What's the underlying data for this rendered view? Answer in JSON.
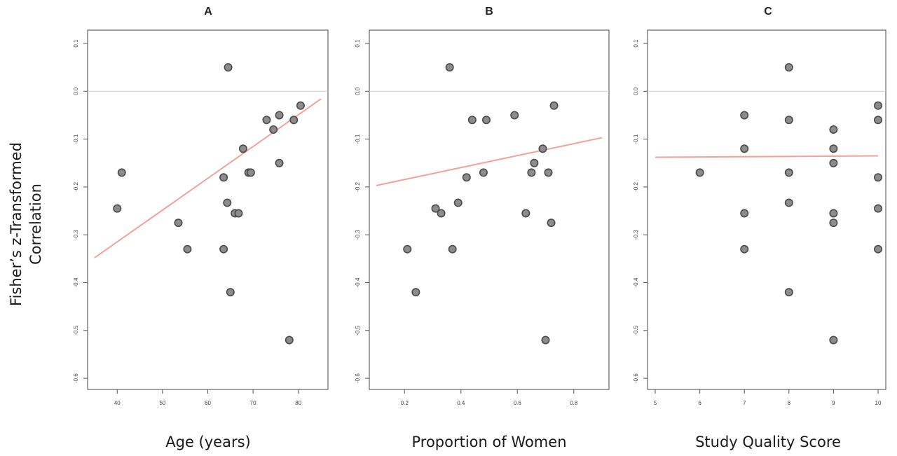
{
  "ylabel_lines": [
    "Fisher’s z-Transformed",
    "Correlation"
  ],
  "colors": {
    "points": "#8c8c8c",
    "point_edge": "#4a4a4a",
    "fit_line": "#f4a199",
    "zero_line": "#cfcfcf"
  },
  "chart_data": [
    {
      "type": "scatter",
      "title": "A",
      "xlabel": "Age (years)",
      "xlim": [
        35,
        85
      ],
      "ylim": [
        -0.6,
        0.1
      ],
      "xticks": [
        40,
        50,
        60,
        70,
        80
      ],
      "xtick_labels": [
        "40",
        "50",
        "60",
        "70",
        "80"
      ],
      "yticks": [
        0.1,
        0.0,
        -0.1,
        -0.2,
        -0.3,
        -0.4,
        -0.5,
        -0.6
      ],
      "ytick_labels": [
        "0.1",
        "0.0",
        "-0.1",
        "-0.2",
        "-0.3",
        "-0.4",
        "-0.5",
        "-0.6"
      ],
      "reference_line_y": 0,
      "points": [
        {
          "x": 40,
          "y": -0.245
        },
        {
          "x": 41,
          "y": -0.17
        },
        {
          "x": 53.5,
          "y": -0.275
        },
        {
          "x": 55.5,
          "y": -0.33
        },
        {
          "x": 63.5,
          "y": -0.18
        },
        {
          "x": 63.5,
          "y": -0.33
        },
        {
          "x": 64.3,
          "y": -0.233
        },
        {
          "x": 64.5,
          "y": 0.05
        },
        {
          "x": 65,
          "y": -0.42
        },
        {
          "x": 66,
          "y": -0.255
        },
        {
          "x": 66.8,
          "y": -0.255
        },
        {
          "x": 67.8,
          "y": -0.12
        },
        {
          "x": 69,
          "y": -0.17
        },
        {
          "x": 69.5,
          "y": -0.17
        },
        {
          "x": 73,
          "y": -0.06
        },
        {
          "x": 74.5,
          "y": -0.08
        },
        {
          "x": 75.8,
          "y": -0.05
        },
        {
          "x": 75.8,
          "y": -0.15
        },
        {
          "x": 78,
          "y": -0.52
        },
        {
          "x": 79,
          "y": -0.06
        },
        {
          "x": 80.5,
          "y": -0.03
        }
      ],
      "fit_line": {
        "x": [
          35,
          85
        ],
        "y": [
          -0.348,
          -0.016
        ]
      }
    },
    {
      "type": "scatter",
      "title": "B",
      "xlabel": "Proportion of Women",
      "xlim": [
        0.1,
        0.9
      ],
      "ylim": [
        -0.6,
        0.1
      ],
      "xticks": [
        0.2,
        0.4,
        0.6,
        0.8
      ],
      "xtick_labels": [
        "0.2",
        "0.4",
        "0.6",
        "0.8"
      ],
      "yticks": [
        0.1,
        0.0,
        -0.1,
        -0.2,
        -0.3,
        -0.4,
        -0.5,
        -0.6
      ],
      "ytick_labels": [
        "0.1",
        "0.0",
        "-0.1",
        "-0.2",
        "-0.3",
        "-0.4",
        "-0.5",
        "-0.6"
      ],
      "reference_line_y": 0,
      "points": [
        {
          "x": 0.21,
          "y": -0.33
        },
        {
          "x": 0.24,
          "y": -0.42
        },
        {
          "x": 0.31,
          "y": -0.245
        },
        {
          "x": 0.33,
          "y": -0.255
        },
        {
          "x": 0.36,
          "y": 0.05
        },
        {
          "x": 0.37,
          "y": -0.33
        },
        {
          "x": 0.39,
          "y": -0.233
        },
        {
          "x": 0.42,
          "y": -0.18
        },
        {
          "x": 0.44,
          "y": -0.06
        },
        {
          "x": 0.48,
          "y": -0.17
        },
        {
          "x": 0.49,
          "y": -0.06
        },
        {
          "x": 0.59,
          "y": -0.05
        },
        {
          "x": 0.63,
          "y": -0.255
        },
        {
          "x": 0.65,
          "y": -0.17
        },
        {
          "x": 0.66,
          "y": -0.15
        },
        {
          "x": 0.69,
          "y": -0.12
        },
        {
          "x": 0.7,
          "y": -0.52
        },
        {
          "x": 0.71,
          "y": -0.17
        },
        {
          "x": 0.72,
          "y": -0.275
        },
        {
          "x": 0.73,
          "y": -0.03
        }
      ],
      "fit_line": {
        "x": [
          0.1,
          0.9
        ],
        "y": [
          -0.197,
          -0.097
        ]
      }
    },
    {
      "type": "scatter",
      "title": "C",
      "xlabel": "Study Quality Score",
      "xlim": [
        5,
        10
      ],
      "ylim": [
        -0.6,
        0.1
      ],
      "xticks": [
        5,
        6,
        7,
        8,
        9,
        10
      ],
      "xtick_labels": [
        "5",
        "6",
        "7",
        "8",
        "9",
        "10"
      ],
      "yticks": [
        0.1,
        0.0,
        -0.1,
        -0.2,
        -0.3,
        -0.4,
        -0.5,
        -0.6
      ],
      "ytick_labels": [
        "0.1",
        "0.0",
        "-0.1",
        "-0.2",
        "-0.3",
        "-0.4",
        "-0.5",
        "-0.6"
      ],
      "reference_line_y": 0,
      "points": [
        {
          "x": 6,
          "y": -0.17
        },
        {
          "x": 7,
          "y": -0.05
        },
        {
          "x": 7,
          "y": -0.12
        },
        {
          "x": 7,
          "y": -0.255
        },
        {
          "x": 7,
          "y": -0.33
        },
        {
          "x": 8,
          "y": 0.05
        },
        {
          "x": 8,
          "y": -0.06
        },
        {
          "x": 8,
          "y": -0.17
        },
        {
          "x": 8,
          "y": -0.233
        },
        {
          "x": 8,
          "y": -0.42
        },
        {
          "x": 9,
          "y": -0.08
        },
        {
          "x": 9,
          "y": -0.12
        },
        {
          "x": 9,
          "y": -0.15
        },
        {
          "x": 9,
          "y": -0.255
        },
        {
          "x": 9,
          "y": -0.275
        },
        {
          "x": 9,
          "y": -0.52
        },
        {
          "x": 10,
          "y": -0.03
        },
        {
          "x": 10,
          "y": -0.06
        },
        {
          "x": 10,
          "y": -0.18
        },
        {
          "x": 10,
          "y": -0.245
        },
        {
          "x": 10,
          "y": -0.33
        }
      ],
      "fit_line": {
        "x": [
          5,
          10
        ],
        "y": [
          -0.138,
          -0.135
        ]
      }
    }
  ]
}
